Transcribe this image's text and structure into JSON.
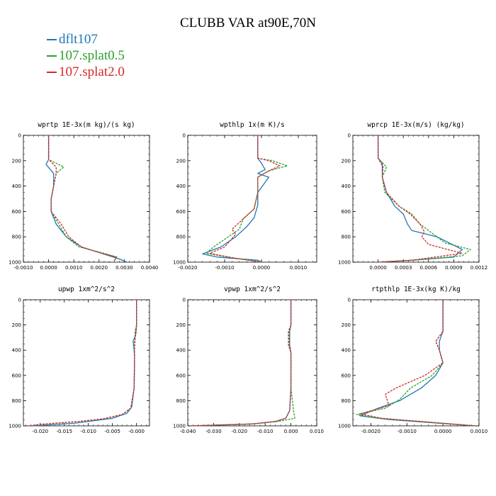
{
  "title": "CLUBB VAR at90E,70N",
  "legend": [
    {
      "label": "dflt107",
      "color": "#1f77b4"
    },
    {
      "label": "107.splat0.5",
      "color": "#2ca02c"
    },
    {
      "label": "107.splat2.0",
      "color": "#d62728"
    }
  ],
  "chart_data": [
    {
      "type": "line",
      "title": "wprtp  1E-3x(m kg)/(s kg)",
      "xlim": [
        -0.001,
        0.004
      ],
      "xticks": [
        -0.001,
        0.0,
        0.001,
        0.002,
        0.003,
        0.004
      ],
      "xtick_labels": [
        "-0.0010",
        "0.0000",
        "0.0010",
        "0.0020",
        "0.0030",
        "0.0040"
      ],
      "ylim": [
        0,
        1000
      ],
      "yticks": [
        0,
        200,
        400,
        600,
        800,
        1000
      ],
      "ytick_labels": [
        "0",
        "200",
        "400",
        "600",
        "800",
        "1000"
      ],
      "series": [
        {
          "name": "dflt107",
          "x": [
            0,
            0,
            0,
            -0.0001,
            0.0002,
            0.0002,
            0.0001,
            0.0001,
            0.0003,
            0.0007,
            0.0013,
            0.0021,
            0.0028,
            0.0031
          ],
          "y": [
            0,
            150,
            190,
            230,
            300,
            400,
            500,
            600,
            700,
            800,
            880,
            930,
            975,
            1000
          ]
        },
        {
          "name": "107.splat0.5",
          "x": [
            0,
            0,
            0,
            0.0006,
            0.0003,
            0.0002,
            0.0001,
            0.0001,
            0.0004,
            0.0007,
            0.0012,
            0.0022,
            0.0027,
            0.0026
          ],
          "y": [
            0,
            150,
            190,
            250,
            300,
            400,
            500,
            600,
            700,
            800,
            880,
            930,
            960,
            990
          ]
        },
        {
          "name": "107.splat2.0",
          "x": [
            0,
            0,
            0,
            0.0003,
            0.0003,
            0.0002,
            0.0001,
            0.0001,
            0.0005,
            0.0008,
            0.0013,
            0.0021,
            0.0027,
            0.0026
          ],
          "y": [
            0,
            150,
            190,
            250,
            300,
            400,
            500,
            600,
            700,
            800,
            880,
            930,
            960,
            990
          ]
        }
      ]
    },
    {
      "type": "line",
      "title": "wpthlp  1x(m K)/s",
      "xlim": [
        -0.002,
        0.0015
      ],
      "xticks": [
        -0.002,
        -0.001,
        0.0,
        0.001
      ],
      "xtick_labels": [
        "-0.0020",
        "-0.0010",
        "0.0000",
        "0.0010"
      ],
      "ylim": [
        0,
        1000
      ],
      "yticks": [
        0,
        200,
        400,
        600,
        800,
        1000
      ],
      "ytick_labels": [
        "0",
        "200",
        "400",
        "600",
        "800",
        "1000"
      ],
      "series": [
        {
          "name": "dflt107",
          "x": [
            -0.0001,
            -0.0001,
            0,
            0.0001,
            -0.0001,
            0.0002,
            -0.0001,
            -0.0001,
            -0.0002,
            -0.0004,
            -0.0007,
            -0.0011,
            -0.0016,
            -0.0012,
            -0.0001,
            0
          ],
          "y": [
            0,
            180,
            220,
            270,
            300,
            330,
            450,
            550,
            650,
            720,
            800,
            880,
            935,
            960,
            985,
            1000
          ]
        },
        {
          "name": "107.splat0.5",
          "x": [
            -0.0001,
            -0.0001,
            0.0003,
            0.0007,
            0.0002,
            -0.0001,
            -0.0001,
            -0.0002,
            -0.0005,
            -0.0006,
            -0.0009,
            -0.0013,
            -0.0015,
            -0.0009,
            0
          ],
          "y": [
            0,
            180,
            200,
            240,
            280,
            330,
            450,
            580,
            660,
            740,
            800,
            880,
            930,
            960,
            1000
          ]
        },
        {
          "name": "107.splat2.0",
          "x": [
            -0.0001,
            -0.0001,
            0.0002,
            0.0005,
            0.0002,
            -0.0001,
            -0.0001,
            -0.0002,
            -0.0005,
            -0.0008,
            -0.0007,
            -0.001,
            -0.0014,
            -0.0008,
            0
          ],
          "y": [
            0,
            180,
            200,
            240,
            280,
            330,
            450,
            580,
            660,
            740,
            780,
            880,
            930,
            965,
            1000
          ]
        }
      ]
    },
    {
      "type": "line",
      "title": "wprcp  1E-3x(m/s) (kg/kg)",
      "xlim": [
        -0.0003,
        0.0012
      ],
      "xticks": [
        0.0,
        0.0003,
        0.0006,
        0.0009,
        0.0012
      ],
      "xtick_labels": [
        "0.0000",
        "0.0003",
        "0.0006",
        "0.0009",
        "0.0012"
      ],
      "ylim": [
        0,
        1000
      ],
      "yticks": [
        0,
        200,
        400,
        600,
        800,
        1000
      ],
      "ytick_labels": [
        "0",
        "200",
        "400",
        "600",
        "800",
        "1000"
      ],
      "series": [
        {
          "name": "dflt107",
          "x": [
            0,
            0,
            5e-05,
            5e-05,
            0.0001,
            0.0002,
            0.0003,
            0.00035,
            0.0004,
            0.0007,
            0.001,
            0.0009,
            0.0004,
            0
          ],
          "y": [
            0,
            180,
            220,
            330,
            450,
            560,
            620,
            700,
            750,
            800,
            900,
            960,
            985,
            1000
          ]
        },
        {
          "name": "107.splat0.5",
          "x": [
            0,
            0,
            0.0001,
            5e-05,
            8e-05,
            0.00025,
            0.0004,
            0.0005,
            0.0006,
            0.0008,
            0.0011,
            0.001,
            0.0004,
            0
          ],
          "y": [
            0,
            180,
            250,
            330,
            450,
            560,
            620,
            700,
            750,
            850,
            900,
            950,
            985,
            1000
          ]
        },
        {
          "name": "107.splat2.0",
          "x": [
            0,
            0,
            6e-05,
            5e-05,
            0.0001,
            0.00025,
            0.00038,
            0.0005,
            0.00055,
            0.00052,
            0.0006,
            0.001,
            0.0004,
            0
          ],
          "y": [
            0,
            180,
            250,
            330,
            450,
            560,
            620,
            700,
            760,
            800,
            860,
            930,
            985,
            1000
          ]
        }
      ]
    },
    {
      "type": "line",
      "title": "upwp  1xm^2/s^2",
      "xlim": [
        -0.0235,
        0.0027
      ],
      "xticks": [
        -0.02,
        -0.015,
        -0.01,
        -0.005,
        0.0
      ],
      "xtick_labels": [
        "-0.020",
        "-0.015",
        "-0.010",
        "-0.005",
        "-0.000"
      ],
      "ylim": [
        0,
        1000
      ],
      "yticks": [
        0,
        200,
        400,
        600,
        800,
        1000
      ],
      "ytick_labels": [
        "0",
        "200",
        "400",
        "600",
        "800",
        "1000"
      ],
      "series": [
        {
          "name": "dflt107",
          "x": [
            0,
            0,
            -0.0002,
            -0.0007,
            -0.0005,
            -0.0004,
            -0.0005,
            -0.001,
            -0.002,
            -0.005,
            -0.009,
            -0.013,
            -0.0215
          ],
          "y": [
            0,
            200,
            280,
            330,
            400,
            450,
            700,
            850,
            900,
            940,
            960,
            980,
            1000
          ]
        },
        {
          "name": "107.splat0.5",
          "x": [
            0,
            0,
            -0.0003,
            -0.0003,
            -0.0004,
            -0.0004,
            -0.0005,
            -0.0012,
            -0.003,
            -0.007,
            -0.012,
            -0.019,
            -0.0225
          ],
          "y": [
            0,
            200,
            250,
            330,
            380,
            450,
            700,
            860,
            910,
            945,
            965,
            985,
            1000
          ]
        },
        {
          "name": "107.splat2.0",
          "x": [
            0,
            0,
            -0.0001,
            -0.0004,
            -0.0004,
            -0.0004,
            -0.0005,
            -0.0012,
            -0.003,
            -0.007,
            -0.012,
            -0.019,
            -0.0225
          ],
          "y": [
            0,
            200,
            260,
            330,
            380,
            450,
            700,
            860,
            910,
            945,
            965,
            985,
            1000
          ]
        }
      ]
    },
    {
      "type": "line",
      "title": "vpwp  1xm^2/s^2",
      "xlim": [
        -0.04,
        0.01
      ],
      "xticks": [
        -0.04,
        -0.03,
        -0.02,
        -0.01,
        0.0,
        0.01
      ],
      "xtick_labels": [
        "-0.040",
        "-0.030",
        "-0.020",
        "-0.010",
        "0.000",
        "0.010"
      ],
      "ylim": [
        0,
        1000
      ],
      "yticks": [
        0,
        200,
        400,
        600,
        800,
        1000
      ],
      "ytick_labels": [
        "0",
        "200",
        "400",
        "600",
        "800",
        "1000"
      ],
      "series": [
        {
          "name": "dflt107",
          "x": [
            0,
            0,
            -0.0005,
            -0.0005,
            0,
            0,
            -0.0005,
            -0.002,
            -0.006,
            -0.015,
            -0.038
          ],
          "y": [
            0,
            200,
            250,
            360,
            420,
            700,
            880,
            940,
            965,
            985,
            1000
          ]
        },
        {
          "name": "107.splat0.5",
          "x": [
            0,
            0,
            -0.001,
            -0.001,
            0,
            0,
            0.001,
            0.0015,
            -0.005,
            -0.015,
            -0.039
          ],
          "y": [
            0,
            200,
            250,
            360,
            420,
            700,
            880,
            940,
            965,
            985,
            1000
          ]
        },
        {
          "name": "107.splat2.0",
          "x": [
            0,
            0,
            -0.0007,
            -0.0007,
            0,
            0,
            -0.0005,
            -0.002,
            -0.006,
            -0.015,
            -0.039
          ],
          "y": [
            0,
            200,
            250,
            360,
            420,
            700,
            880,
            940,
            965,
            985,
            1000
          ]
        }
      ]
    },
    {
      "type": "line",
      "title": "rtpthlp  1E-3x(kg K)/kg",
      "xlim": [
        -0.0025,
        0.001
      ],
      "xticks": [
        -0.002,
        -0.001,
        0.0,
        0.001
      ],
      "xtick_labels": [
        "-0.0020",
        "-0.0010",
        "0.0000",
        "0.0010"
      ],
      "ylim": [
        0,
        1000
      ],
      "yticks": [
        0,
        200,
        400,
        600,
        800,
        1000
      ],
      "ytick_labels": [
        "0",
        "200",
        "400",
        "600",
        "800",
        "1000"
      ],
      "series": [
        {
          "name": "dflt107",
          "x": [
            0,
            0,
            -0.0001,
            -0.0001,
            0,
            -0.0002,
            -0.0006,
            -0.0012,
            -0.0018,
            -0.0023,
            -0.0015,
            0.0009
          ],
          "y": [
            0,
            250,
            330,
            400,
            500,
            600,
            700,
            800,
            860,
            920,
            950,
            1000
          ]
        },
        {
          "name": "107.splat0.5",
          "x": [
            0,
            0,
            -0.0002,
            -0.0001,
            0,
            -0.0003,
            -0.0009,
            -0.0012,
            -0.0016,
            -0.0024,
            -0.0018,
            0.0009
          ],
          "y": [
            0,
            250,
            330,
            400,
            500,
            600,
            700,
            790,
            860,
            910,
            940,
            1000
          ]
        },
        {
          "name": "107.splat2.0",
          "x": [
            0,
            0,
            -0.0002,
            -0.0001,
            0,
            -0.0005,
            -0.0013,
            -0.0016,
            -0.0015,
            -0.0023,
            -0.0017,
            0.0009
          ],
          "y": [
            0,
            250,
            330,
            400,
            500,
            600,
            700,
            750,
            840,
            905,
            940,
            1000
          ]
        }
      ]
    }
  ]
}
